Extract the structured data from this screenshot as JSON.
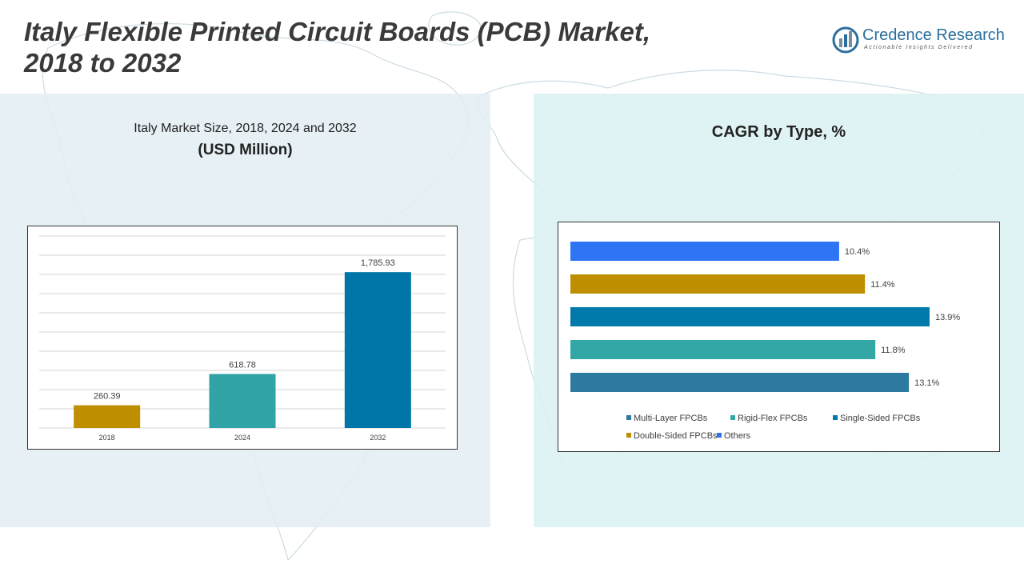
{
  "header": {
    "title_line1": "Italy Flexible Printed Circuit Boards (PCB) Market,",
    "title_line2": "2018 to 2032"
  },
  "logo": {
    "icon": "bar-chart-logo-icon",
    "name": "Credence Research",
    "tagline": "Actionable Insights Delivered"
  },
  "left_panel": {
    "subtitle": "Italy Market Size, 2018, 2024 and 2032",
    "unit": "(USD Million)"
  },
  "right_panel": {
    "title": "CAGR by Type, %"
  },
  "chart_data": [
    {
      "type": "bar",
      "title": "Italy Market Size, 2018, 2024 and 2032",
      "ylabel": "USD Million",
      "categories": [
        "2018",
        "2024",
        "2032"
      ],
      "values": [
        260.39,
        618.78,
        1785.93
      ],
      "value_labels": [
        "260.39",
        "618.78",
        "1,785.93"
      ],
      "colors": [
        "#bf8f00",
        "#2fa3a5",
        "#0076a8"
      ],
      "ylim": [
        0,
        2200
      ],
      "grid": true
    },
    {
      "type": "bar",
      "orientation": "horizontal",
      "title": "CAGR by Type, %",
      "categories": [
        "Others",
        "Double-Sided FPCBs",
        "Single-Sided FPCBs",
        "Rigid-Flex FPCBs",
        "Multi-Layer FPCBs"
      ],
      "values": [
        10.4,
        11.4,
        13.9,
        11.8,
        13.1
      ],
      "value_labels": [
        "10.4%",
        "11.4%",
        "13.9%",
        "11.8%",
        "13.1%"
      ],
      "colors": [
        "#2e75f6",
        "#bf8f00",
        "#0079ab",
        "#33a6a6",
        "#2e79a0"
      ],
      "xlim": [
        0,
        14
      ],
      "legend": {
        "placement": "bottom",
        "items": [
          {
            "label": "Multi-Layer FPCBs",
            "color": "#2e79a0"
          },
          {
            "label": "Rigid-Flex FPCBs",
            "color": "#33a6a6"
          },
          {
            "label": "Single-Sided FPCBs",
            "color": "#0079ab"
          },
          {
            "label": "Double-Sided FPCBs",
            "color": "#bf8f00"
          },
          {
            "label": "Others",
            "color": "#2e75f6"
          }
        ]
      }
    }
  ]
}
